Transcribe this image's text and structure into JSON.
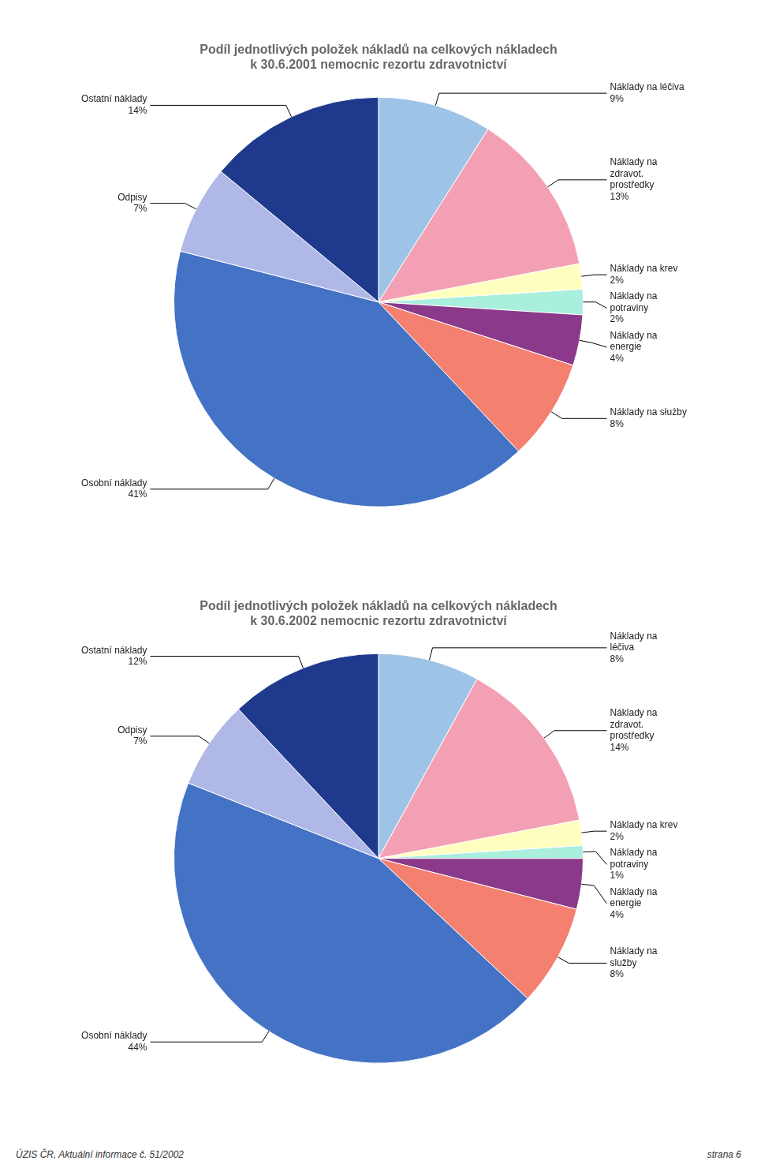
{
  "annotations": [
    "ÚZIS ČR, Aktuální informace č. 51/2002",
    "strana 6"
  ],
  "chart_data": [
    {
      "type": "pie",
      "title": "Podíl jednotlivých položek nákladů na celkových nákladech\nk 30.6.2001 nemocnic rezortu zdravotnictví",
      "categories": [
        "Náklady na léčiva",
        "Náklady na\nzdravot.\nprostředky",
        "Náklady na krev",
        "Náklady na\npotraviny",
        "Náklady na\nenergie",
        "Náklady na służby",
        "Osobní náklady",
        "Odpisy",
        "Ostatní náklady"
      ],
      "values": [
        9,
        13,
        2,
        2,
        4,
        8,
        41,
        7,
        14
      ],
      "value_labels": [
        "9%",
        "13%",
        "2%",
        "2%",
        "4%",
        "8%",
        "41%",
        "7%",
        "14%"
      ],
      "colors": [
        "#9dc3e6",
        "#f4a0b4",
        "#ffffc0",
        "#aaeedd",
        "#8b3a8b",
        "#f48070",
        "#4472c4",
        "#b0b8e8",
        "#1f3a8c"
      ],
      "data_labels": true
    },
    {
      "type": "pie",
      "title": "Podíl jednotlivých položek nákladů na celkových nákladech\nk 30.6.2002 nemocnic rezortu zdravotnictví",
      "categories": [
        "Náklady na\nléčiva",
        "Náklady na\nzdravot.\nprostředky",
        "Náklady na krev",
        "Náklady na\npotraviny",
        "Náklady na\nenergie",
        "Náklady na\nslužby",
        "Osobní náklady",
        "Odpisy",
        "Ostatní náklady"
      ],
      "values": [
        8,
        14,
        2,
        1,
        4,
        8,
        44,
        7,
        12
      ],
      "value_labels": [
        "8%",
        "14%",
        "2%",
        "1%",
        "4%",
        "8%",
        "44%",
        "7%",
        "12%"
      ],
      "colors": [
        "#9dc3e6",
        "#f4a0b4",
        "#ffffc0",
        "#aaeedd",
        "#8b3a8b",
        "#f48070",
        "#4472c4",
        "#b0b8e8",
        "#1f3a8c"
      ],
      "data_labels": true
    }
  ]
}
